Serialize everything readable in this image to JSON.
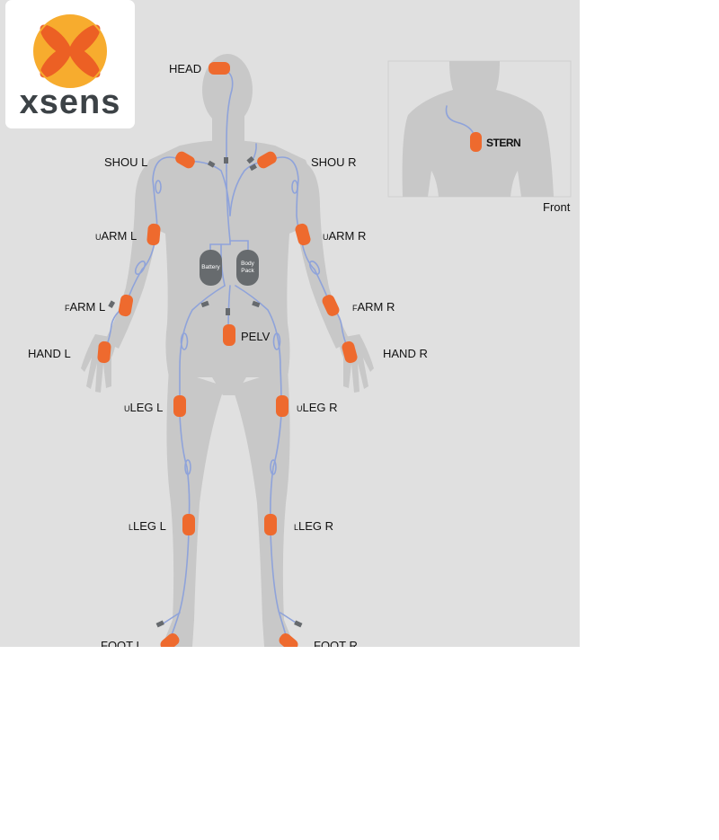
{
  "logo": {
    "text": "xsens"
  },
  "inset": {
    "label": "Front",
    "sensor_label": "STERN"
  },
  "sensors": {
    "head": "HEAD",
    "shou_l": "SHOU L",
    "shou_r": "SHOU R",
    "uarm_l_prefix": "U",
    "uarm_l": "ARM L",
    "uarm_r_prefix": "U",
    "uarm_r": "ARM R",
    "farm_l_prefix": "F",
    "farm_l": "ARM L",
    "farm_r_prefix": "F",
    "farm_r": "ARM R",
    "hand_l": "HAND L",
    "hand_r": "HAND R",
    "pelv": "PELV",
    "uleg_l_prefix": "U",
    "uleg_l": "LEG L",
    "uleg_r_prefix": "U",
    "uleg_r": "LEG R",
    "lleg_l_prefix": "L",
    "lleg_l": "LEG L",
    "lleg_r_prefix": "L",
    "lleg_r": "LEG R",
    "foot_l": "FOOT L",
    "foot_r": "FOOT R"
  },
  "packs": {
    "battery": "Battery",
    "body_pack_line1": "Body",
    "body_pack_line2": "Pack"
  },
  "colors": {
    "background": "#e0e0e0",
    "silhouette": "#c8c8c8",
    "sensor": "#ee6a2e",
    "cable": "#8fa3da",
    "pack": "#676b6e",
    "logo_orange": "#f7ac2e",
    "logo_red": "#ec5a24"
  }
}
